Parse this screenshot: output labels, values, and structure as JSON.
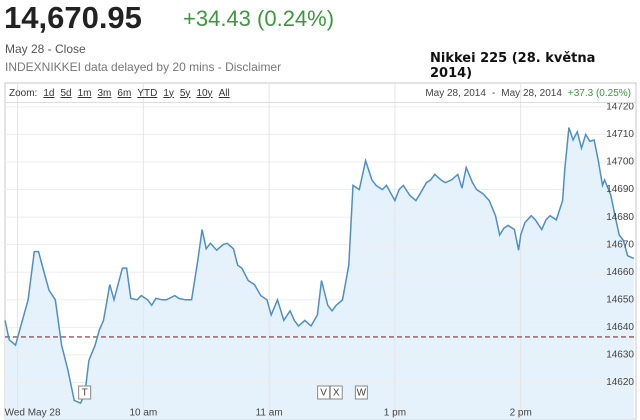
{
  "header": {
    "price": "14,670.95",
    "change": "+34.43 (0.24%)",
    "status": "May 28 - Close",
    "source": "INDEXNIKKEI data delayed by 20 mins - Disclaimer",
    "caption": "Nikkei 225 (28. května 2014)"
  },
  "toolbar": {
    "zoom_label": "Zoom:",
    "zoom": [
      "1d",
      "5d",
      "1m",
      "3m",
      "6m",
      "YTD",
      "1y",
      "5y",
      "10y",
      "All"
    ],
    "range_start": "May 28, 2014",
    "range_sep": "-",
    "range_end": "May 28, 2014",
    "range_change": "+37.3 (0.25%)"
  },
  "chart_data": {
    "type": "line",
    "x": [
      -6,
      -4,
      -1,
      1,
      5,
      8,
      10,
      13,
      15,
      18,
      21,
      24,
      27,
      30,
      32,
      34,
      37,
      39,
      41,
      44,
      46,
      50,
      52,
      54,
      57,
      59,
      62,
      64,
      66,
      69,
      71,
      75,
      77,
      80,
      83,
      86,
      88,
      90,
      92,
      95,
      98,
      100,
      103,
      105,
      107,
      110,
      113,
      116,
      119,
      121,
      124,
      127,
      130,
      132,
      134,
      137,
      140,
      143,
      145,
      148,
      150,
      152,
      155,
      158,
      160,
      163,
      166,
      169,
      171,
      174,
      176,
      180,
      182,
      184,
      187,
      190,
      192,
      195,
      197,
      199,
      202,
      204,
      207,
      210,
      212,
      214,
      217,
      219,
      222,
      225,
      228,
      230,
      232,
      234,
      237,
      239,
      240,
      242,
      245,
      247,
      250,
      252,
      254,
      257,
      260,
      261,
      263,
      265,
      267,
      269,
      271,
      273,
      275,
      277,
      279,
      280,
      283,
      285,
      287,
      289,
      291,
      294
    ],
    "series": [
      {
        "color": "#4d8fc9",
        "fill": "#e6f2fb",
        "values": [
          14642.5,
          14635.5,
          14633.5,
          14639,
          14650,
          14667.5,
          14667.5,
          14659,
          14653.5,
          14650,
          14633.5,
          14624.5,
          14613.5,
          14612.5,
          14615.5,
          14628,
          14633.5,
          14639,
          14642.5,
          14655.5,
          14650,
          14661.5,
          14661.5,
          14650.5,
          14650,
          14651.5,
          14650,
          14648,
          14650.5,
          14650,
          14650,
          14651.5,
          14650.5,
          14650,
          14650,
          14664.5,
          14675.5,
          14668.5,
          14670.5,
          14668,
          14670,
          14670.5,
          14668.5,
          14662.5,
          14661.5,
          14657,
          14655.5,
          14651.5,
          14650,
          14644.5,
          14650,
          14642.5,
          14646,
          14642.5,
          14640.5,
          14642.5,
          14640.5,
          14644.5,
          14657,
          14648,
          14646,
          14648,
          14650,
          14662.5,
          14691.5,
          14690,
          14700.5,
          14693.5,
          14691.5,
          14690,
          14691.5,
          14686,
          14690,
          14691.5,
          14688,
          14686,
          14688.5,
          14692.5,
          14693.5,
          14695.5,
          14693.5,
          14692.5,
          14693.5,
          14695.5,
          14690.5,
          14698,
          14692.5,
          14690,
          14688.5,
          14686,
          14680.5,
          14673.5,
          14676,
          14677,
          14675.5,
          14668,
          14673.5,
          14678,
          14680.5,
          14679,
          14675.5,
          14679,
          14680.5,
          14679,
          14686,
          14697,
          14712.5,
          14708,
          14711,
          14705,
          14710,
          14707.5,
          14708,
          14700.5,
          14691.5,
          14693.5,
          14688,
          14680.5,
          14673.5,
          14671.5,
          14666,
          14665
        ]
      }
    ],
    "reference_line": {
      "value": 14636.52,
      "color": "#8a3030"
    },
    "xlim": [
      -6,
      295
    ],
    "xticks": [
      {
        "value": 0,
        "label": "Wed May 28"
      },
      {
        "value": 60,
        "label": "10 am"
      },
      {
        "value": 120,
        "label": "11 am"
      },
      {
        "value": 180,
        "label": "1 pm"
      },
      {
        "value": 240,
        "label": "2 pm"
      }
    ],
    "ylim": [
      14610,
      14722.5
    ],
    "yticks": [
      14620,
      14630,
      14640,
      14650,
      14660,
      14670,
      14680,
      14690,
      14700,
      14710,
      14720
    ],
    "annotations": [
      {
        "label": "T",
        "x": 32
      },
      {
        "label": "V",
        "x": 146
      },
      {
        "label": "X",
        "x": 152
      },
      {
        "label": "W",
        "x": 164
      }
    ],
    "grid": true
  }
}
